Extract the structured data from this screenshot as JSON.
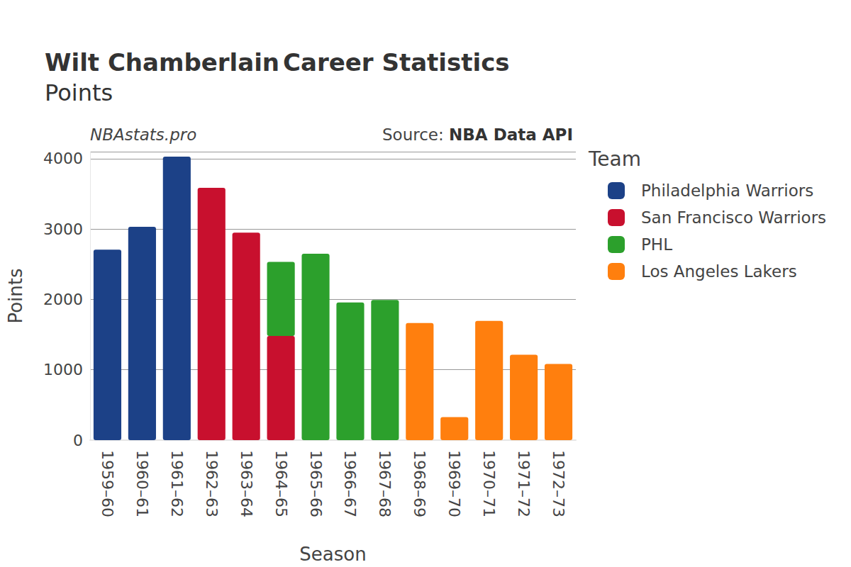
{
  "chart_data": {
    "type": "bar",
    "title": {
      "bold": "Wilt Chamberlain",
      "text": "Career Statistics"
    },
    "subtitle": "Points",
    "watermark": "NBAstats.pro",
    "source": {
      "label": "Source:",
      "text": "NBA Data API"
    },
    "x_label": "Season",
    "y_label": "Points",
    "legend_title": "Team",
    "categories": [
      "1959–60",
      "1960–61",
      "1961–62",
      "1962–63",
      "1963–64",
      "1964–65",
      "1965–66",
      "1966–67",
      "1967–68",
      "1968–69",
      "1969–70",
      "1970–71",
      "1971–72",
      "1972–73"
    ],
    "series": [
      {
        "name": "Philadelphia Warriors",
        "color": "#1c4187",
        "values": [
          2707,
          3033,
          4029,
          null,
          null,
          null,
          null,
          null,
          null,
          null,
          null,
          null,
          null,
          null
        ]
      },
      {
        "name": "San Francisco Warriors",
        "color": "#c8102e",
        "values": [
          null,
          null,
          null,
          3586,
          2948,
          1480,
          null,
          null,
          null,
          null,
          null,
          null,
          null,
          null
        ]
      },
      {
        "name": "PHL",
        "color": "#2ca02c",
        "values": [
          null,
          null,
          null,
          null,
          null,
          1054,
          2649,
          1956,
          1992,
          null,
          null,
          null,
          null,
          null
        ]
      },
      {
        "name": "Los Angeles Lakers",
        "color": "#ff7f0e",
        "values": [
          null,
          null,
          null,
          null,
          null,
          null,
          null,
          null,
          null,
          1664,
          328,
          1696,
          1213,
          1084
        ]
      }
    ],
    "ylim": [
      0,
      4100
    ],
    "yticks": [
      0,
      1000,
      2000,
      3000,
      4000
    ],
    "stacked": true,
    "grid": true,
    "legend": "right"
  }
}
